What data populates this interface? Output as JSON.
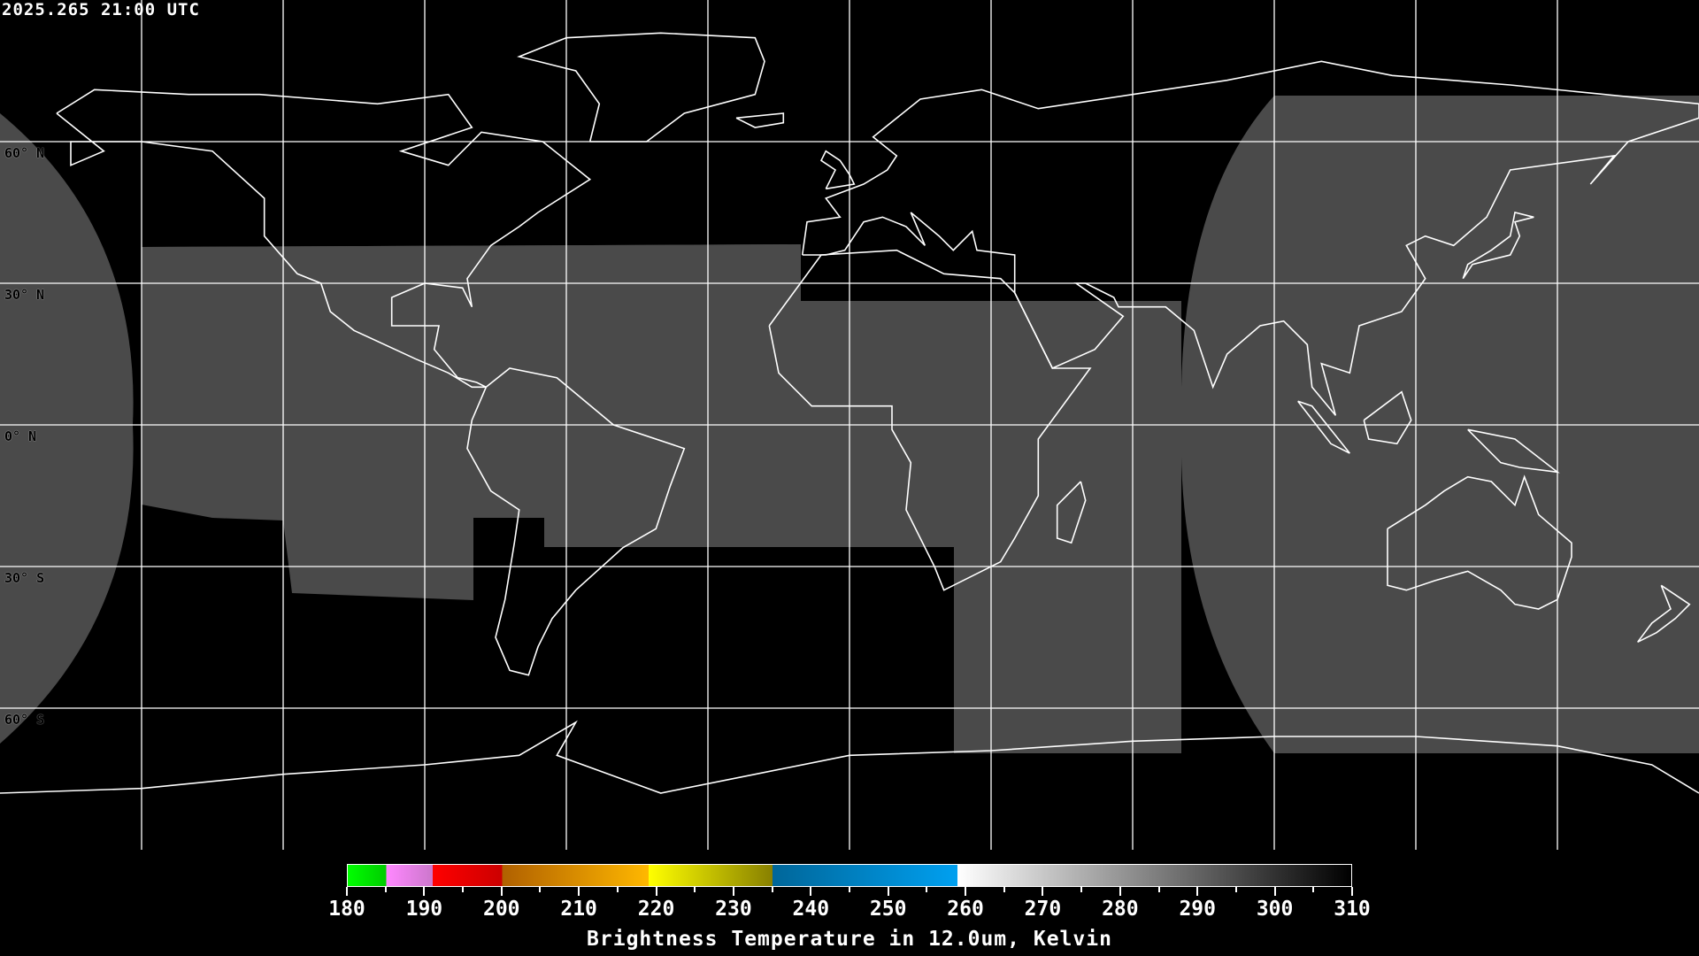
{
  "header": {
    "timestamp": "2025.265 21:00 UTC"
  },
  "map": {
    "projection": "equirectangular",
    "lon_range": [
      -180,
      180
    ],
    "lat_range": [
      -90,
      90
    ],
    "grid_spacing_deg": 30,
    "lat_labels": [
      {
        "lat": 60,
        "text": "60° N"
      },
      {
        "lat": 30,
        "text": "30° N"
      },
      {
        "lat": 0,
        "text": "0° N"
      },
      {
        "lat": -30,
        "text": "30° S"
      },
      {
        "lat": -60,
        "text": "60° S"
      }
    ],
    "coastline_color": "#ffffff",
    "grid_color": "#ffffff"
  },
  "colorbar": {
    "min": 180,
    "max": 310,
    "title": "Brightness Temperature in 12.0um, Kelvin",
    "tick_labels": [
      "180",
      "190",
      "200",
      "210",
      "220",
      "230",
      "240",
      "250",
      "260",
      "270",
      "280",
      "290",
      "300",
      "310"
    ],
    "segments": [
      {
        "from": 180,
        "to": 185,
        "start": "#00ff00",
        "end": "#00cc00"
      },
      {
        "from": 185,
        "to": 191,
        "start": "#ff88ff",
        "end": "#cc77cc"
      },
      {
        "from": 191,
        "to": 200,
        "start": "#ff0000",
        "end": "#cc0000"
      },
      {
        "from": 200,
        "to": 219,
        "start": "#b06000",
        "end": "#ffb800"
      },
      {
        "from": 219,
        "to": 235,
        "start": "#ffff00",
        "end": "#888000"
      },
      {
        "from": 235,
        "to": 259,
        "start": "#006699",
        "end": "#00a0f0"
      },
      {
        "from": 259,
        "to": 310,
        "start": "#ffffff",
        "end": "#000000"
      }
    ]
  }
}
